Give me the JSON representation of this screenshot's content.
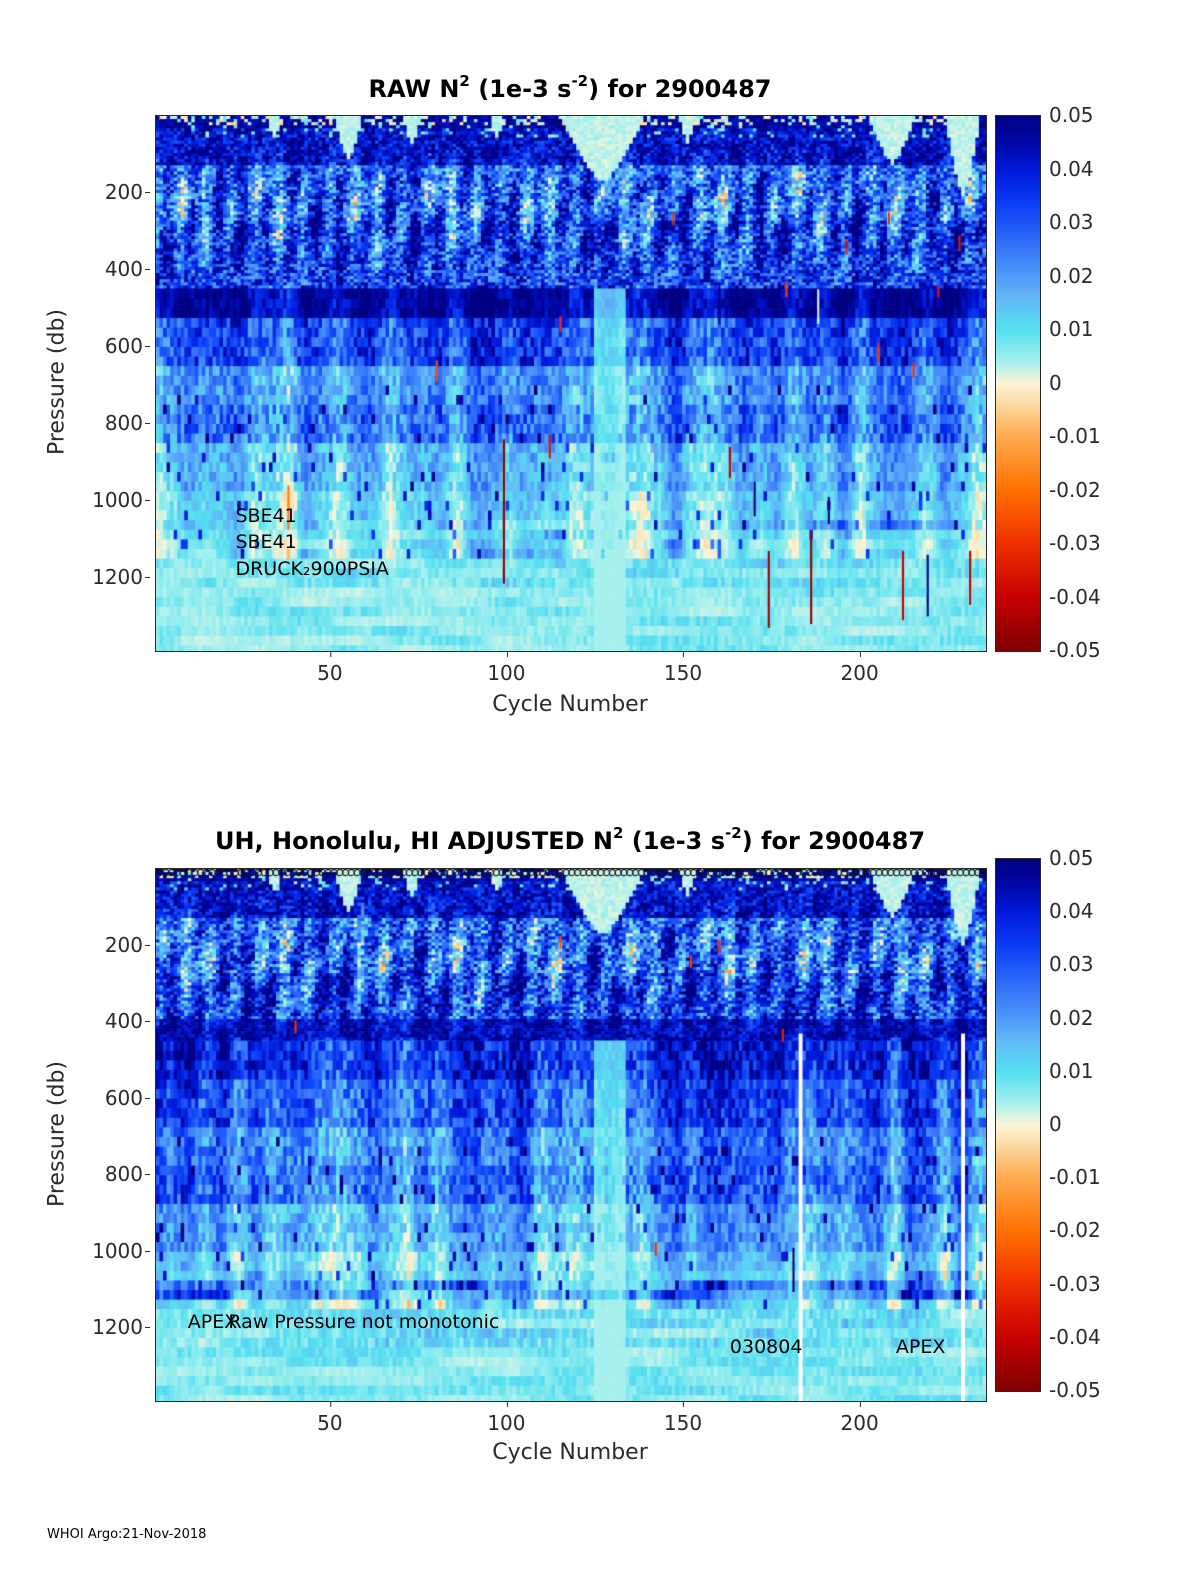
{
  "page": {
    "footer": "WHOI Argo:21-Nov-2018"
  },
  "colormap": [
    {
      "t": 0.0,
      "c": "#7f0000"
    },
    {
      "t": 0.1,
      "c": "#c80000"
    },
    {
      "t": 0.2,
      "c": "#f03000"
    },
    {
      "t": 0.3,
      "c": "#ff7000"
    },
    {
      "t": 0.4,
      "c": "#ffa94d"
    },
    {
      "t": 0.46,
      "c": "#fbd9a0"
    },
    {
      "t": 0.5,
      "c": "#fdf5d8"
    },
    {
      "t": 0.54,
      "c": "#a8f0ee"
    },
    {
      "t": 0.6,
      "c": "#55e0f0"
    },
    {
      "t": 0.66,
      "c": "#63b8f7"
    },
    {
      "t": 0.72,
      "c": "#468cfa"
    },
    {
      "t": 0.78,
      "c": "#2864fa"
    },
    {
      "t": 0.84,
      "c": "#0a3cf5"
    },
    {
      "t": 0.9,
      "c": "#0019dc"
    },
    {
      "t": 0.95,
      "c": "#0008aa"
    },
    {
      "t": 1.0,
      "c": "#000082"
    }
  ],
  "chart_data": [
    {
      "type": "heatmap",
      "title": {
        "pre": "RAW N",
        "sup1": "2",
        "mid": " (1e-3 s",
        "sup2": "-2",
        "post": ") for 2900487"
      },
      "xlabel": "Cycle Number",
      "ylabel": "Pressure (db)",
      "x_ticks": [
        50,
        100,
        150,
        200
      ],
      "y_ticks": [
        200,
        400,
        600,
        800,
        1000,
        1200
      ],
      "x_range": [
        1,
        235
      ],
      "y_range": [
        0,
        1390
      ],
      "n_cycles": 235,
      "p_max": 1390,
      "seed": 7,
      "colorbar": {
        "min": -0.05,
        "max": 0.05,
        "tick_labels": [
          "0.05",
          "0.04",
          "0.03",
          "0.02",
          "0.01",
          "0",
          "-0.01",
          "-0.02",
          "-0.03",
          "-0.04",
          "-0.05"
        ]
      },
      "annotations": [
        {
          "text": "SBE41",
          "c": 23,
          "p": 1040
        },
        {
          "text": "SBE41",
          "c": 23,
          "p": 1108
        },
        {
          "text": "DRUCK₂900PSIA",
          "c": 23,
          "p": 1178
        }
      ],
      "profile": [
        {
          "p0": 0,
          "p1": 30,
          "v": 0.047,
          "n": 0.005
        },
        {
          "p0": 30,
          "p1": 130,
          "v": 0.042,
          "n": 0.012
        },
        {
          "p0": 130,
          "p1": 270,
          "v": 0.027,
          "n": 0.017
        },
        {
          "p0": 270,
          "p1": 445,
          "v": 0.033,
          "n": 0.016
        },
        {
          "p0": 445,
          "p1": 535,
          "v": 0.046,
          "n": 0.007
        },
        {
          "p0": 535,
          "p1": 655,
          "v": 0.031,
          "n": 0.011
        },
        {
          "p0": 655,
          "p1": 745,
          "v": 0.02,
          "n": 0.009
        },
        {
          "p0": 745,
          "p1": 845,
          "v": 0.024,
          "n": 0.011
        },
        {
          "p0": 845,
          "p1": 965,
          "v": 0.014,
          "n": 0.007
        },
        {
          "p0": 965,
          "p1": 1105,
          "v": 0.01,
          "n": 0.005
        },
        {
          "p0": 1105,
          "p1": 1225,
          "v": 0.007,
          "n": 0.003
        },
        {
          "p0": 1225,
          "p1": 1400,
          "v": 0.0055,
          "n": 0.002
        }
      ],
      "wedges": [
        {
          "c": 34,
          "w": 4,
          "d": 60
        },
        {
          "c": 55,
          "w": 8,
          "d": 110
        },
        {
          "c": 73,
          "w": 5,
          "d": 75
        },
        {
          "c": 97,
          "w": 4,
          "d": 60
        },
        {
          "c": 127,
          "w": 24,
          "d": 170
        },
        {
          "c": 151,
          "w": 5,
          "d": 70
        },
        {
          "c": 209,
          "w": 13,
          "d": 125
        },
        {
          "c": 229,
          "w": 10,
          "d": 205
        }
      ],
      "light_col": {
        "c": 129,
        "w": 9,
        "p0": 445
      },
      "top_markers": false,
      "spikes": [
        {
          "c": 38,
          "p0": 960,
          "p1": 1075,
          "v": -0.018
        },
        {
          "c": 80,
          "p0": 635,
          "p1": 690,
          "v": -0.025
        },
        {
          "c": 99,
          "p0": 840,
          "p1": 1215,
          "v": -0.048
        },
        {
          "c": 112,
          "p0": 830,
          "p1": 890,
          "v": -0.035
        },
        {
          "c": 115,
          "p0": 520,
          "p1": 560,
          "v": -0.03
        },
        {
          "c": 147,
          "p0": 250,
          "p1": 285,
          "v": -0.032
        },
        {
          "c": 160,
          "p0": 440,
          "p1": 540,
          "v": 0.05
        },
        {
          "c": 163,
          "p0": 860,
          "p1": 940,
          "v": -0.04
        },
        {
          "c": 170,
          "p0": 950,
          "p1": 1040,
          "v": 0.05
        },
        {
          "c": 174,
          "p0": 1130,
          "p1": 1330,
          "v": -0.046
        },
        {
          "c": 179,
          "p0": 430,
          "p1": 470,
          "v": -0.028
        },
        {
          "c": 186,
          "p0": 1080,
          "p1": 1320,
          "v": -0.046
        },
        {
          "c": 188,
          "p0": 450,
          "p1": 540,
          "v": 0.002
        },
        {
          "c": 191,
          "p0": 990,
          "p1": 1060,
          "v": 0.05
        },
        {
          "c": 196,
          "p0": 320,
          "p1": 360,
          "v": -0.035
        },
        {
          "c": 205,
          "p0": 590,
          "p1": 640,
          "v": -0.03
        },
        {
          "c": 208,
          "p0": 250,
          "p1": 282,
          "v": -0.03
        },
        {
          "c": 212,
          "p0": 1130,
          "p1": 1310,
          "v": -0.04
        },
        {
          "c": 215,
          "p0": 640,
          "p1": 680,
          "v": -0.03
        },
        {
          "c": 219,
          "p0": 1140,
          "p1": 1300,
          "v": 0.05
        },
        {
          "c": 222,
          "p0": 440,
          "p1": 472,
          "v": -0.035
        },
        {
          "c": 228,
          "p0": 310,
          "p1": 350,
          "v": -0.035
        },
        {
          "c": 231,
          "p0": 1130,
          "p1": 1270,
          "v": -0.04
        }
      ]
    },
    {
      "type": "heatmap",
      "title": {
        "pre": "UH, Honolulu, HI  ADJUSTED N",
        "sup1": "2",
        "mid": " (1e-3 s",
        "sup2": "-2",
        "post": ") for 2900487"
      },
      "xlabel": "Cycle Number",
      "ylabel": "Pressure (db)",
      "x_ticks": [
        50,
        100,
        150,
        200
      ],
      "y_ticks": [
        200,
        400,
        600,
        800,
        1000,
        1200
      ],
      "x_range": [
        1,
        235
      ],
      "y_range": [
        0,
        1390
      ],
      "n_cycles": 235,
      "p_max": 1390,
      "seed": 13,
      "colorbar": {
        "min": -0.05,
        "max": 0.05,
        "tick_labels": [
          "0.05",
          "0.04",
          "0.03",
          "0.02",
          "0.01",
          "0",
          "-0.01",
          "-0.02",
          "-0.03",
          "-0.04",
          "-0.05"
        ]
      },
      "annotations": [
        {
          "text": "APEX",
          "c": 9.5,
          "p": 1183
        },
        {
          "text": "Raw Pressure not monotonic",
          "c": 21,
          "p": 1183
        },
        {
          "text": "030804",
          "c": 163,
          "p": 1248
        },
        {
          "text": "APEX",
          "c": 210,
          "p": 1248
        }
      ],
      "profile": [
        {
          "p0": 0,
          "p1": 30,
          "v": 0.047,
          "n": 0.005
        },
        {
          "p0": 30,
          "p1": 130,
          "v": 0.042,
          "n": 0.012
        },
        {
          "p0": 130,
          "p1": 270,
          "v": 0.027,
          "n": 0.017
        },
        {
          "p0": 270,
          "p1": 390,
          "v": 0.033,
          "n": 0.016
        },
        {
          "p0": 390,
          "p1": 450,
          "v": 0.044,
          "n": 0.009
        },
        {
          "p0": 450,
          "p1": 545,
          "v": 0.037,
          "n": 0.011
        },
        {
          "p0": 545,
          "p1": 665,
          "v": 0.03,
          "n": 0.011
        },
        {
          "p0": 665,
          "p1": 765,
          "v": 0.023,
          "n": 0.01
        },
        {
          "p0": 765,
          "p1": 885,
          "v": 0.026,
          "n": 0.011
        },
        {
          "p0": 885,
          "p1": 1005,
          "v": 0.017,
          "n": 0.008
        },
        {
          "p0": 1005,
          "p1": 1065,
          "v": 0.011,
          "n": 0.005
        },
        {
          "p0": 1065,
          "p1": 1125,
          "v": 0.019,
          "n": 0.008
        },
        {
          "p0": 1125,
          "p1": 1255,
          "v": 0.008,
          "n": 0.004
        },
        {
          "p0": 1255,
          "p1": 1400,
          "v": 0.006,
          "n": 0.002
        }
      ],
      "wedges": [
        {
          "c": 34,
          "w": 4,
          "d": 60
        },
        {
          "c": 55,
          "w": 8,
          "d": 110
        },
        {
          "c": 73,
          "w": 5,
          "d": 75
        },
        {
          "c": 97,
          "w": 4,
          "d": 60
        },
        {
          "c": 127,
          "w": 24,
          "d": 170
        },
        {
          "c": 151,
          "w": 5,
          "d": 70
        },
        {
          "c": 209,
          "w": 13,
          "d": 125
        },
        {
          "c": 229,
          "w": 10,
          "d": 200
        }
      ],
      "light_col": {
        "c": 129,
        "w": 9,
        "p0": 450
      },
      "top_markers": true,
      "spikes": [
        {
          "c": 40,
          "p0": 395,
          "p1": 430,
          "v": -0.03
        },
        {
          "c": 115,
          "p0": 175,
          "p1": 210,
          "v": -0.026
        },
        {
          "c": 142,
          "p0": 975,
          "p1": 1010,
          "v": -0.03
        },
        {
          "c": 152,
          "p0": 225,
          "p1": 258,
          "v": -0.028
        },
        {
          "c": 160,
          "p0": 185,
          "p1": 220,
          "v": -0.03
        },
        {
          "c": 178,
          "p0": 418,
          "p1": 452,
          "v": -0.034
        },
        {
          "c": 181,
          "p0": 990,
          "p1": 1105,
          "v": 0.05
        },
        {
          "c": 183,
          "p0": 430,
          "p1": 1400,
          "v": null,
          "w": 1.1
        },
        {
          "c": 229,
          "p0": 430,
          "p1": 1400,
          "v": null,
          "w": 1.1
        }
      ]
    }
  ]
}
